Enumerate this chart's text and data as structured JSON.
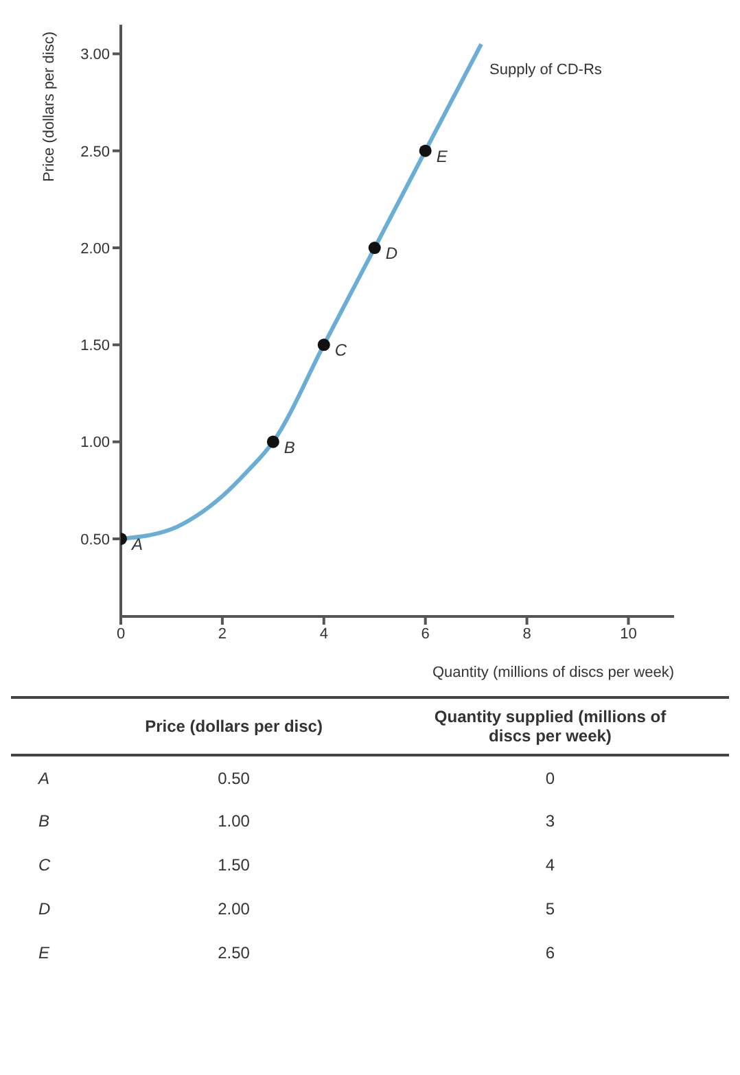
{
  "chart_data": [
    {
      "type": "line",
      "xlabel": "Quantity (millions of discs per week)",
      "ylabel": "Price (dollars per disc)",
      "xlim": [
        0,
        10.9
      ],
      "xticks": [
        0,
        2,
        4,
        6,
        8,
        10
      ],
      "ylim": [
        0.1,
        3.15
      ],
      "yticks": [
        {
          "value": 0.5,
          "label": "0.50"
        },
        {
          "value": 1,
          "label": "1.00"
        },
        {
          "value": 1.5,
          "label": "1.50"
        },
        {
          "value": 2,
          "label": "2.00"
        },
        {
          "value": 2.5,
          "label": "2.50"
        },
        {
          "value": 3,
          "label": "3.00"
        }
      ],
      "grid": false,
      "legend": false,
      "series": [
        {
          "name": "Supply of CD-Rs",
          "type": "line",
          "color": "#6aaed6",
          "marker": "none",
          "x": [
            0,
            1,
            1.5,
            2,
            2.5,
            3,
            4,
            5,
            6,
            7.1
          ],
          "values": [
            0.5,
            0.55,
            0.62,
            0.72,
            0.85,
            1.0,
            1.5,
            2.0,
            2.5,
            3.05
          ]
        },
        {
          "type": "scatter",
          "color": "#111111",
          "marker": "circle",
          "x": [
            0,
            3,
            4,
            5,
            6
          ],
          "values": [
            0.5,
            1.0,
            1.5,
            2.0,
            2.5
          ],
          "value_labels": [
            "A",
            "B",
            "C",
            "D",
            "E"
          ]
        }
      ]
    },
    {
      "type": "other",
      "categories": [
        "A",
        "B",
        "C",
        "D",
        "E"
      ],
      "series": [
        {
          "name": "Price (dollars per disc)",
          "values": [
            0.5,
            1.0,
            1.5,
            2.0,
            2.5
          ],
          "value_labels": [
            "0.50",
            "1.00",
            "1.50",
            "2.00",
            "2.50"
          ]
        },
        {
          "name": "Quantity supplied (millions of discs per week)",
          "values": [
            0,
            3,
            4,
            5,
            6
          ],
          "value_labels": [
            "0",
            "3",
            "4",
            "5",
            "6"
          ]
        }
      ]
    }
  ]
}
